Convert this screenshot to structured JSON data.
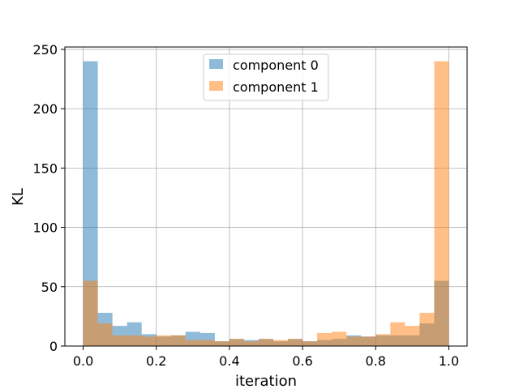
{
  "chart_data": {
    "type": "bar",
    "xlabel": "iteration",
    "ylabel": "KL",
    "xlim": [
      -0.05,
      1.05
    ],
    "ylim": [
      0,
      252
    ],
    "xticks": [
      "0.0",
      "0.2",
      "0.4",
      "0.6",
      "0.8",
      "1.0"
    ],
    "yticks": [
      "0",
      "50",
      "100",
      "150",
      "200",
      "250"
    ],
    "grid": true,
    "legend_position": "top-center",
    "bin_edges": [
      0,
      0.04,
      0.08,
      0.12,
      0.16,
      0.2,
      0.24,
      0.28,
      0.32,
      0.36,
      0.4,
      0.44,
      0.48,
      0.52,
      0.56,
      0.6,
      0.64,
      0.68,
      0.72,
      0.76,
      0.8,
      0.84,
      0.88,
      0.92,
      0.96,
      1.0
    ],
    "series": [
      {
        "name": "component 0",
        "color": "#1f77b4",
        "values": [
          240,
          28,
          17,
          20,
          10,
          8,
          9,
          12,
          11,
          4,
          6,
          5,
          6,
          4,
          6,
          4,
          5,
          6,
          9,
          8,
          9,
          9,
          9,
          19,
          55
        ]
      },
      {
        "name": "component 1",
        "color": "#ff7f0e",
        "values": [
          55,
          19,
          9,
          9,
          8,
          9,
          9,
          5,
          5,
          4,
          6,
          4,
          6,
          5,
          6,
          4,
          11,
          12,
          8,
          8,
          10,
          20,
          17,
          28,
          240
        ]
      }
    ]
  }
}
